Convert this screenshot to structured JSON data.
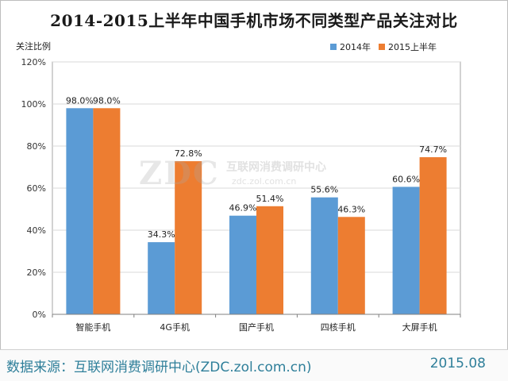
{
  "chart_data": {
    "type": "bar",
    "title": "2014-2015上半年中国手机市场不同类型产品关注对比",
    "ylabel": "关注比例",
    "xlabel": "",
    "categories": [
      "智能手机",
      "4G手机",
      "国产手机",
      "四核手机",
      "大屏手机"
    ],
    "series": [
      {
        "name": "2014年",
        "color": "#5b9bd5",
        "values": [
          98.0,
          34.3,
          46.9,
          55.6,
          60.6
        ],
        "labels": [
          "98.0%",
          "34.3%",
          "46.9%",
          "55.6%",
          "60.6%"
        ]
      },
      {
        "name": "2015上半年",
        "color": "#ed7d31",
        "values": [
          98.0,
          72.8,
          51.4,
          46.3,
          74.7
        ],
        "labels": [
          "98.0%",
          "72.8%",
          "51.4%",
          "46.3%",
          "74.7%"
        ]
      }
    ],
    "ylim": [
      0,
      120
    ],
    "yticks": [
      0,
      20,
      40,
      60,
      80,
      100,
      120
    ],
    "ytick_labels": [
      "0%",
      "20%",
      "40%",
      "60%",
      "80%",
      "100%",
      "120%"
    ],
    "grid": true,
    "legend_position": "top-right"
  },
  "watermark": {
    "logo": "ZDC",
    "name": "互联网消费调研中心",
    "url": "zdc.zol.com.cn"
  },
  "footer": {
    "source": "数据来源：互联网消费调研中心(ZDC.zol.com.cn)",
    "date": "2015.08"
  }
}
